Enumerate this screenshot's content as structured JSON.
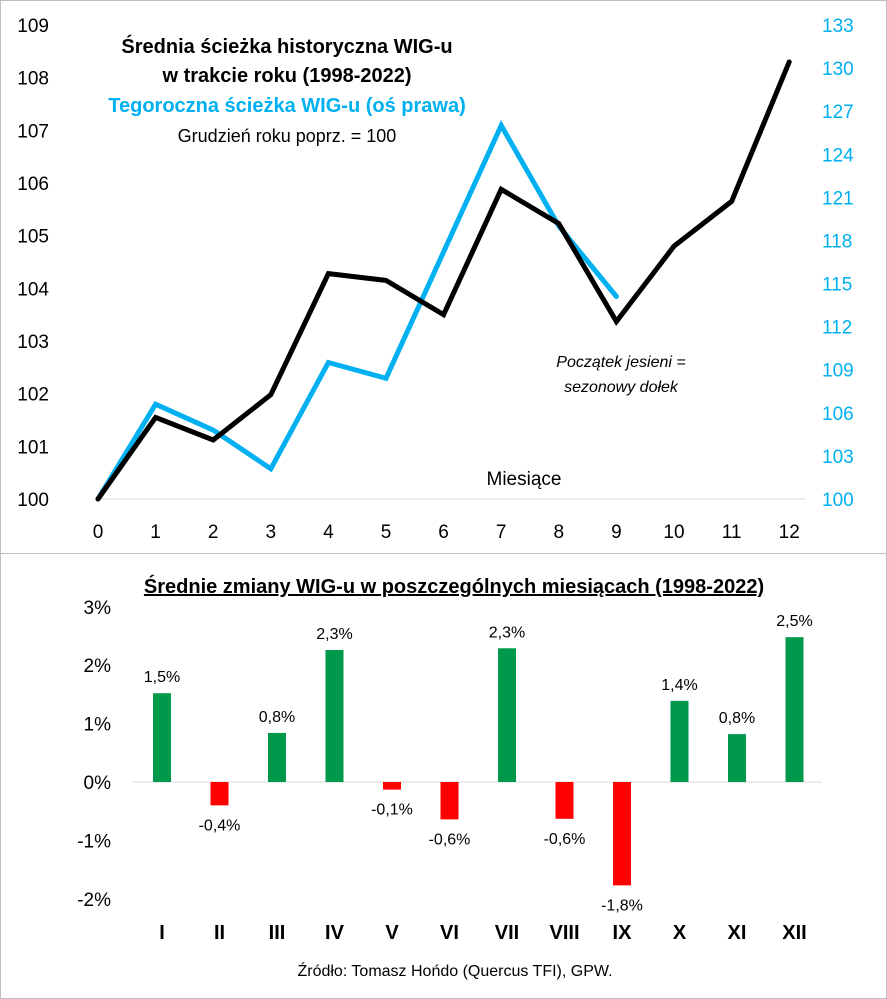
{
  "chart_data": [
    {
      "type": "line",
      "title_line1": "Średnia ścieżka historyczna WIG-u",
      "title_line2": "w trakcie roku (1998-2022)",
      "subtitle_right_axis": "Tegoroczna ścieżka WIG-u (oś prawa)",
      "note": "Grudzień roku poprz. = 100",
      "xlabel": "Miesiące",
      "x": [
        0,
        1,
        2,
        3,
        4,
        5,
        6,
        7,
        8,
        9,
        10,
        11,
        12
      ],
      "x_ticks": [
        "0",
        "1",
        "2",
        "3",
        "4",
        "5",
        "6",
        "7",
        "8",
        "9",
        "10",
        "11",
        "12"
      ],
      "y_left_ticks": [
        "100",
        "101",
        "102",
        "103",
        "104",
        "105",
        "106",
        "107",
        "108",
        "109"
      ],
      "y_right_ticks": [
        "100",
        "103",
        "106",
        "109",
        "112",
        "115",
        "118",
        "121",
        "124",
        "127",
        "130",
        "133"
      ],
      "ylim_left": [
        100,
        109
      ],
      "ylim_right": [
        100,
        133
      ],
      "annotation_line1": "Początek jesieni =",
      "annotation_line2": "sezonowy dołek",
      "series": [
        {
          "name": "Średnia ścieżka historyczna WIG-u",
          "axis": "left",
          "color": "#000000",
          "x": [
            0,
            1,
            2,
            3,
            4,
            5,
            6,
            7,
            8,
            9,
            10,
            11,
            12
          ],
          "values": [
            100,
            101.55,
            101.12,
            101.98,
            104.28,
            104.15,
            103.5,
            105.88,
            105.23,
            103.37,
            104.8,
            105.65,
            108.3
          ]
        },
        {
          "name": "Tegoroczna ścieżka WIG-u",
          "axis": "right",
          "color": "#00b0f0",
          "x": [
            0,
            1,
            2,
            3,
            4,
            5,
            6,
            7,
            8,
            9
          ],
          "values": [
            100,
            106.6,
            104.8,
            102.1,
            109.5,
            108.4,
            117.2,
            126.0,
            119.0,
            114.1
          ]
        }
      ]
    },
    {
      "type": "bar",
      "title": "Średnie zmiany WIG-u w poszczególnych miesiącach (1998-2022)",
      "categories": [
        "I",
        "II",
        "III",
        "IV",
        "V",
        "VI",
        "VII",
        "VIII",
        "IX",
        "X",
        "XI",
        "XII"
      ],
      "values": [
        1.52,
        -0.4,
        0.84,
        2.26,
        -0.13,
        -0.64,
        2.29,
        -0.63,
        -1.77,
        1.39,
        0.82,
        2.48
      ],
      "value_labels": [
        "1,5%",
        "-0,4%",
        "0,8%",
        "2,3%",
        "-0,1%",
        "-0,6%",
        "2,3%",
        "-0,6%",
        "-1,8%",
        "1,4%",
        "0,8%",
        "2,5%"
      ],
      "y_ticks": [
        "3%",
        "2%",
        "1%",
        "0%",
        "-1%",
        "-2%"
      ],
      "ylim": [
        -2,
        3
      ],
      "positive_color": "#00994c",
      "negative_color": "#ff0000",
      "source": "Źródło: Tomasz Hońdo (Quercus TFI), GPW."
    }
  ]
}
